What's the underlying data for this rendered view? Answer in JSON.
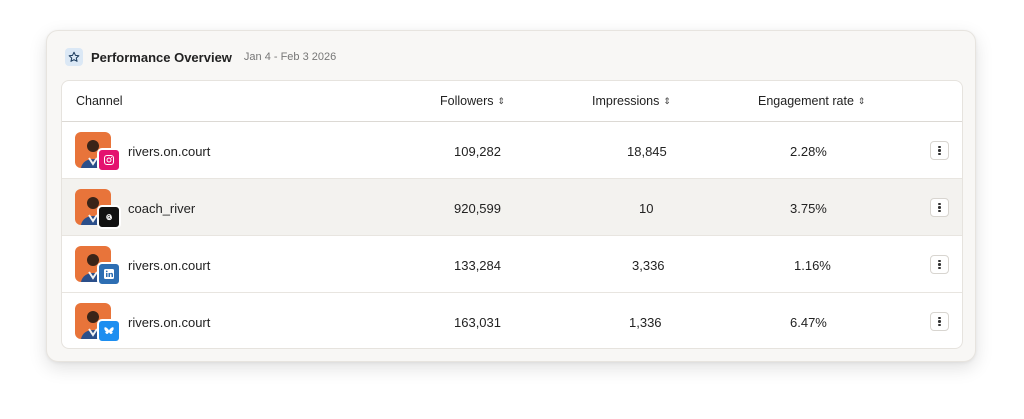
{
  "header": {
    "title": "Performance Overview",
    "date_range": "Jan 4 - Feb 3 2026",
    "icon": "star-icon"
  },
  "table": {
    "columns": {
      "channel": "Channel",
      "followers": "Followers",
      "impressions": "Impressions",
      "engagement": "Engagement rate"
    },
    "rows": [
      {
        "name": "rivers.on.court",
        "platform": "instagram",
        "followers": "109,282",
        "impressions": "18,845",
        "engagement": "2.28%",
        "badge_color": "#e4126f"
      },
      {
        "name": "coach_river",
        "platform": "threads",
        "followers": "920,599",
        "impressions": "10",
        "engagement": "3.75%",
        "badge_color": "#111111"
      },
      {
        "name": "rivers.on.court",
        "platform": "linkedin",
        "followers": "133,284",
        "impressions": "3,336",
        "engagement": "1.16%",
        "badge_color": "#2d6eb3"
      },
      {
        "name": "rivers.on.court",
        "platform": "bluesky",
        "followers": "163,031",
        "impressions": "1,336",
        "engagement": "6.47%",
        "badge_color": "#1d8ef0"
      }
    ]
  },
  "colors": {
    "card_bg": "#f8f7f5",
    "avatar_bg": "#e8743a",
    "highlight_row": "#f3f2ef"
  }
}
